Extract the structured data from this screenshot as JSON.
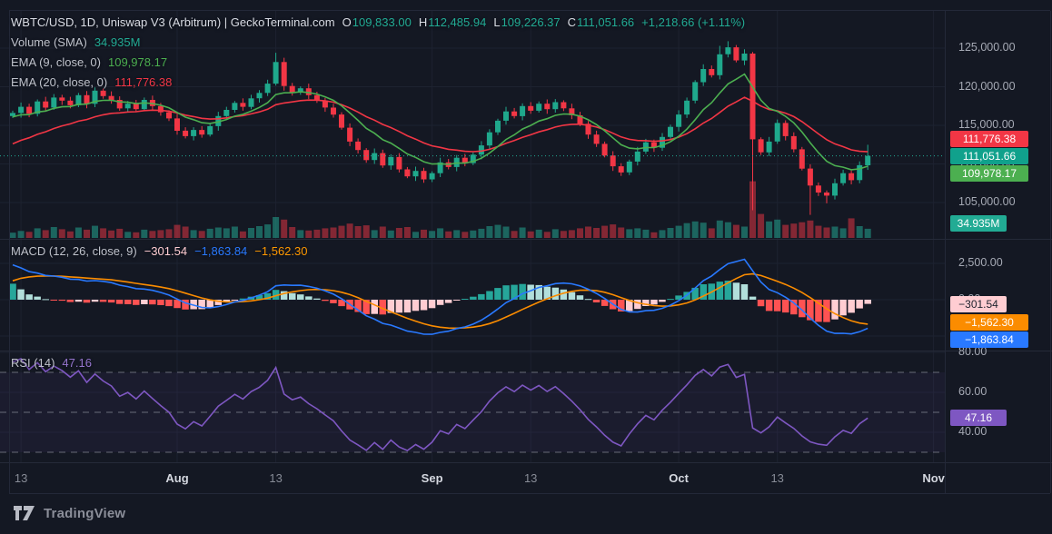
{
  "header": {
    "title": "WBTC/USD, 1D, Uniswap V3 (Arbitrum) | GeckoTerminal.com",
    "ohlc": {
      "o_label": "O",
      "o": "109,833.00",
      "h_label": "H",
      "h": "112,485.94",
      "l_label": "L",
      "l": "109,226.37",
      "c_label": "C",
      "c": "111,051.66",
      "change": "+1,218.66 (+1.11%)"
    },
    "volume": {
      "label": "Volume (SMA)",
      "value": "34.935M"
    },
    "ema9": {
      "label": "EMA (9, close, 0)",
      "value": "109,978.17"
    },
    "ema20": {
      "label": "EMA (20, close, 0)",
      "value": "111,776.38"
    }
  },
  "panes": {
    "macd": {
      "label": "MACD (12, 26, close, 9)",
      "hist": "−301.54",
      "macd": "−1,863.84",
      "signal": "−1,562.30"
    },
    "rsi": {
      "label": "RSI (14)",
      "value": "47.16"
    }
  },
  "price_axis": {
    "ticks": [
      {
        "label": "125,000.00",
        "value": 125000
      },
      {
        "label": "120,000.00",
        "value": 120000
      },
      {
        "label": "115,000.00",
        "value": 115000
      },
      {
        "label": "110,000.00",
        "value": 110000
      },
      {
        "label": "105,000.00",
        "value": 105000
      }
    ]
  },
  "macd_axis": {
    "ticks": [
      {
        "label": "2,500.00",
        "value": 2500
      },
      {
        "label": "0.00",
        "value": 0
      }
    ]
  },
  "rsi_axis": {
    "ticks": [
      {
        "label": "80.00",
        "value": 80
      },
      {
        "label": "60.00",
        "value": 60
      },
      {
        "label": "40.00",
        "value": 40
      }
    ]
  },
  "axis_badges": [
    {
      "id": "ema20",
      "scale": "price",
      "value": 111776.38,
      "label": "111,776.38",
      "bg": "#f23645",
      "fg": "#ffffff",
      "wide": true
    },
    {
      "id": "close",
      "scale": "price",
      "value": 111051.66,
      "label": "111,051.66",
      "bg": "#10a18c",
      "fg": "#ffffff",
      "wide": true
    },
    {
      "id": "ema9",
      "scale": "price",
      "value": 109978.17,
      "label": "109,978.17",
      "bg": "#4caf50",
      "fg": "#ffffff",
      "wide": true
    },
    {
      "id": "vol",
      "scale": "volume",
      "value": 34.935,
      "label": "34.935M",
      "bg": "#22ab94",
      "fg": "#ffffff",
      "wide": false
    },
    {
      "id": "hist",
      "scale": "macd",
      "value": -301.54,
      "label": "−301.54",
      "bg": "#ffcdd2",
      "fg": "#20242f",
      "wide": false
    },
    {
      "id": "signal",
      "scale": "macd",
      "value": -1562.3,
      "label": "−1,562.30",
      "bg": "#fb8c00",
      "fg": "#ffffff",
      "wide": true
    },
    {
      "id": "macd",
      "scale": "macd",
      "value": -1863.84,
      "label": "−1,863.84",
      "bg": "#2979ff",
      "fg": "#ffffff",
      "wide": true
    },
    {
      "id": "rsi",
      "scale": "rsi",
      "value": 47.16,
      "label": "47.16",
      "bg": "#7e57c2",
      "fg": "#ffffff",
      "wide": false
    }
  ],
  "time_axis": {
    "ticks": [
      {
        "label": "13",
        "i": 1,
        "month": false
      },
      {
        "label": "Aug",
        "i": 20,
        "month": true
      },
      {
        "label": "13",
        "i": 32,
        "month": false
      },
      {
        "label": "Sep",
        "i": 51,
        "month": true
      },
      {
        "label": "13",
        "i": 63,
        "month": false
      },
      {
        "label": "Oct",
        "i": 81,
        "month": true
      },
      {
        "label": "13",
        "i": 93,
        "month": false
      },
      {
        "label": "Nov",
        "i": 112,
        "month": true
      }
    ]
  },
  "footer": {
    "brand": "TradingView"
  },
  "colors": {
    "bg": "#141823",
    "grid": "#1d2230",
    "sep": "#252a38",
    "frame": "#232838",
    "up": "#1fa88c",
    "down": "#f23645",
    "vol_up": "rgba(34,166,146,0.55)",
    "vol_down": "rgba(242,54,69,0.5)",
    "ema9": "#4caf50",
    "ema20": "#f23645",
    "macd_line": "#2979ff",
    "signal_line": "#fb8c00",
    "hist": [
      "#26a69a",
      "#b2dfdb",
      "#ff5252",
      "#ffcdd2"
    ],
    "rsi_line": "#7e57c2",
    "rsi_band": "rgba(126,87,194,0.07)",
    "rsi_dash": "rgba(183,187,197,0.5)",
    "close_line": "#22ab94",
    "axis_text": "#a6aab5"
  },
  "chart_data": {
    "type": "candlestick",
    "symbol": "WBTC/USD",
    "interval": "1D",
    "venue": "Uniswap V3 (Arbitrum)",
    "source": "GeckoTerminal.com",
    "last_bar": {
      "open": 109833.0,
      "high": 112485.94,
      "low": 109226.37,
      "close": 111051.66,
      "change": 1218.66,
      "change_pct": 1.11
    },
    "indicators": {
      "volume_sma": "34.935M",
      "ema9_last": 109978.17,
      "ema20_last": 111776.38,
      "macd": {
        "fast": 12,
        "slow": 26,
        "signal": 9,
        "hist": -301.54,
        "macd": -1863.84,
        "signal_value": -1562.3
      },
      "rsi": {
        "period": 14,
        "value": 47.16
      }
    },
    "price_axis_visible": [
      105000,
      125000
    ],
    "macd_axis_visible": [
      -3500,
      4125
    ],
    "rsi_guides": [
      70,
      50,
      30
    ],
    "volume_unit": "millions",
    "candles_format": [
      "date",
      "open",
      "high",
      "low",
      "close",
      "volume_m"
    ],
    "candles": [
      [
        "Jul 12",
        116200,
        116900,
        115950,
        116600,
        12
      ],
      [
        "Jul 13",
        116600,
        117950,
        116000,
        117400,
        16
      ],
      [
        "Jul 14",
        117400,
        117800,
        116050,
        116500,
        14
      ],
      [
        "Jul 15",
        116500,
        118350,
        116150,
        118100,
        22
      ],
      [
        "Jul 16",
        118100,
        118700,
        116800,
        117300,
        18
      ],
      [
        "Jul 17",
        117300,
        119050,
        117000,
        118600,
        25
      ],
      [
        "Jul 18",
        118600,
        118950,
        117650,
        118200,
        20
      ],
      [
        "Jul 19",
        118200,
        118700,
        117200,
        117600,
        15
      ],
      [
        "Jul 20",
        117600,
        119200,
        117350,
        118900,
        24
      ],
      [
        "Jul 21",
        118900,
        119450,
        117200,
        117800,
        19
      ],
      [
        "Jul 22",
        117800,
        119900,
        117350,
        119500,
        28
      ],
      [
        "Jul 23",
        119500,
        119750,
        118450,
        118800,
        22
      ],
      [
        "Jul 24",
        118800,
        119400,
        117800,
        118300,
        17
      ],
      [
        "Jul 25",
        118300,
        118750,
        116900,
        117200,
        21
      ],
      [
        "Jul 26",
        117200,
        118150,
        116650,
        117800,
        14
      ],
      [
        "Jul 27",
        117800,
        118300,
        116700,
        117100,
        13
      ],
      [
        "Jul 28",
        117100,
        118600,
        116850,
        118300,
        19
      ],
      [
        "Jul 29",
        118300,
        118850,
        116900,
        117500,
        16
      ],
      [
        "Jul 30",
        117500,
        117900,
        116250,
        116700,
        18
      ],
      [
        "Jul 31",
        116700,
        116950,
        115550,
        115900,
        20
      ],
      [
        "Aug 1",
        115900,
        116500,
        113800,
        114300,
        30
      ],
      [
        "Aug 2",
        114300,
        114750,
        113300,
        113600,
        26
      ],
      [
        "Aug 3",
        113600,
        114750,
        113050,
        114400,
        18
      ],
      [
        "Aug 4",
        114400,
        114900,
        113400,
        113800,
        16
      ],
      [
        "Aug 5",
        113800,
        115200,
        113550,
        114900,
        21
      ],
      [
        "Aug 6",
        114900,
        116750,
        114300,
        116200,
        24
      ],
      [
        "Aug 7",
        116200,
        117400,
        115750,
        117000,
        22
      ],
      [
        "Aug 8",
        117000,
        118150,
        116650,
        117900,
        26
      ],
      [
        "Aug 9",
        117900,
        118500,
        116900,
        117400,
        15
      ],
      [
        "Aug 10",
        117400,
        118950,
        117100,
        118500,
        23
      ],
      [
        "Aug 11",
        118500,
        119550,
        117950,
        119200,
        27
      ],
      [
        "Aug 12",
        119200,
        120900,
        118800,
        120400,
        31
      ],
      [
        "Aug 13",
        120400,
        124400,
        120150,
        123200,
        48
      ],
      [
        "Aug 14",
        123200,
        123750,
        119500,
        120100,
        42
      ],
      [
        "Aug 15",
        120100,
        120500,
        118850,
        119300,
        25
      ],
      [
        "Aug 16",
        119300,
        120050,
        118950,
        119800,
        18
      ],
      [
        "Aug 17",
        119800,
        120400,
        118400,
        118900,
        17
      ],
      [
        "Aug 18",
        118900,
        119350,
        117900,
        118200,
        19
      ],
      [
        "Aug 19",
        118200,
        118550,
        116750,
        117300,
        22
      ],
      [
        "Aug 20",
        117300,
        117800,
        116000,
        116400,
        24
      ],
      [
        "Aug 21",
        116400,
        116700,
        114450,
        114700,
        28
      ],
      [
        "Aug 22",
        114700,
        115250,
        112300,
        112900,
        33
      ],
      [
        "Aug 23",
        112900,
        113300,
        111350,
        111800,
        27
      ],
      [
        "Aug 24",
        111800,
        112050,
        110150,
        110500,
        29
      ],
      [
        "Aug 25",
        110500,
        112000,
        110000,
        111400,
        18
      ],
      [
        "Aug 26",
        111400,
        111850,
        109500,
        109800,
        26
      ],
      [
        "Aug 27",
        109800,
        111250,
        109250,
        110900,
        17
      ],
      [
        "Aug 28",
        110900,
        111400,
        108900,
        109300,
        23
      ],
      [
        "Aug 29",
        109300,
        109600,
        108150,
        108400,
        25
      ],
      [
        "Aug 30",
        108400,
        109650,
        107800,
        109100,
        14
      ],
      [
        "Aug 31",
        109100,
        109500,
        107550,
        108000,
        19
      ],
      [
        "Sep 1",
        108000,
        109050,
        107650,
        108800,
        16
      ],
      [
        "Sep 2",
        108800,
        110800,
        108300,
        110200,
        22
      ],
      [
        "Sep 3",
        110200,
        110650,
        109300,
        109600,
        15
      ],
      [
        "Sep 4",
        109600,
        111150,
        109050,
        110800,
        18
      ],
      [
        "Sep 5",
        110800,
        111300,
        109700,
        110100,
        14
      ],
      [
        "Sep 6",
        110100,
        111500,
        109850,
        111200,
        17
      ],
      [
        "Sep 7",
        111200,
        112950,
        110600,
        112400,
        21
      ],
      [
        "Sep 8",
        112400,
        114500,
        111950,
        114100,
        27
      ],
      [
        "Sep 9",
        114100,
        115850,
        113750,
        115600,
        30
      ],
      [
        "Sep 10",
        115600,
        117400,
        115100,
        116800,
        26
      ],
      [
        "Sep 11",
        116800,
        117250,
        115900,
        116200,
        16
      ],
      [
        "Sep 12",
        116200,
        117850,
        115650,
        117500,
        24
      ],
      [
        "Sep 13",
        117500,
        118000,
        116500,
        116900,
        15
      ],
      [
        "Sep 14",
        116900,
        118100,
        116650,
        117800,
        19
      ],
      [
        "Sep 15",
        117800,
        118350,
        116500,
        117100,
        14
      ],
      [
        "Sep 16",
        117100,
        118400,
        116650,
        118000,
        20
      ],
      [
        "Sep 17",
        118000,
        118250,
        116850,
        117200,
        16
      ],
      [
        "Sep 18",
        117200,
        117800,
        115800,
        116300,
        18
      ],
      [
        "Sep 19",
        116300,
        116750,
        114900,
        115200,
        22
      ],
      [
        "Sep 20",
        115200,
        115550,
        113250,
        113800,
        26
      ],
      [
        "Sep 21",
        113800,
        114300,
        112200,
        112600,
        23
      ],
      [
        "Sep 22",
        112600,
        112900,
        110850,
        111100,
        28
      ],
      [
        "Sep 23",
        111100,
        111650,
        109100,
        109700,
        31
      ],
      [
        "Sep 24",
        109700,
        110100,
        108450,
        108900,
        24
      ],
      [
        "Sep 25",
        108900,
        110550,
        108550,
        110300,
        20
      ],
      [
        "Sep 26",
        110300,
        112200,
        109800,
        111600,
        22
      ],
      [
        "Sep 27",
        111600,
        113250,
        111300,
        112800,
        19
      ],
      [
        "Sep 28",
        112800,
        113150,
        111550,
        112100,
        13
      ],
      [
        "Sep 29",
        112100,
        114000,
        111700,
        113500,
        18
      ],
      [
        "Sep 30",
        113500,
        115100,
        113250,
        114800,
        23
      ],
      [
        "Oct 1",
        114800,
        116950,
        114200,
        116400,
        28
      ],
      [
        "Oct 2",
        116400,
        118600,
        115950,
        118200,
        34
      ],
      [
        "Oct 3",
        118200,
        120850,
        117850,
        120600,
        38
      ],
      [
        "Oct 4",
        120600,
        122900,
        120100,
        122300,
        35
      ],
      [
        "Oct 5",
        122300,
        122750,
        121200,
        121500,
        22
      ],
      [
        "Oct 6",
        121500,
        125300,
        120950,
        124200,
        40
      ],
      [
        "Oct 7",
        124200,
        125900,
        123800,
        125100,
        36
      ],
      [
        "Oct 8",
        125100,
        125400,
        123150,
        123400,
        30
      ],
      [
        "Oct 9",
        123400,
        124850,
        122800,
        124300,
        26
      ],
      [
        "Oct 10",
        124300,
        124500,
        104000,
        113200,
        130
      ],
      [
        "Oct 11",
        113200,
        113450,
        111150,
        111500,
        55
      ],
      [
        "Oct 12",
        111500,
        113500,
        111000,
        112900,
        38
      ],
      [
        "Oct 13",
        112900,
        115750,
        112600,
        115300,
        42
      ],
      [
        "Oct 14",
        115300,
        115650,
        113050,
        113600,
        30
      ],
      [
        "Oct 15",
        113600,
        114100,
        111500,
        111900,
        33
      ],
      [
        "Oct 16",
        111900,
        112200,
        109150,
        109400,
        36
      ],
      [
        "Oct 17",
        109400,
        109950,
        103400,
        107200,
        40
      ],
      [
        "Oct 18",
        107200,
        107600,
        105850,
        106300,
        28
      ],
      [
        "Oct 19",
        106300,
        106550,
        104900,
        105900,
        24
      ],
      [
        "Oct 20",
        105900,
        108100,
        105400,
        107500,
        26
      ],
      [
        "Oct 21",
        107500,
        109250,
        107200,
        108800,
        22
      ],
      [
        "Oct 22",
        108800,
        109150,
        107350,
        107900,
        45
      ],
      [
        "Oct 23",
        107900,
        110333,
        107500,
        109833,
        27
      ],
      [
        "Oct 24",
        109833,
        112485.94,
        109226.37,
        111051.66,
        21
      ]
    ]
  }
}
